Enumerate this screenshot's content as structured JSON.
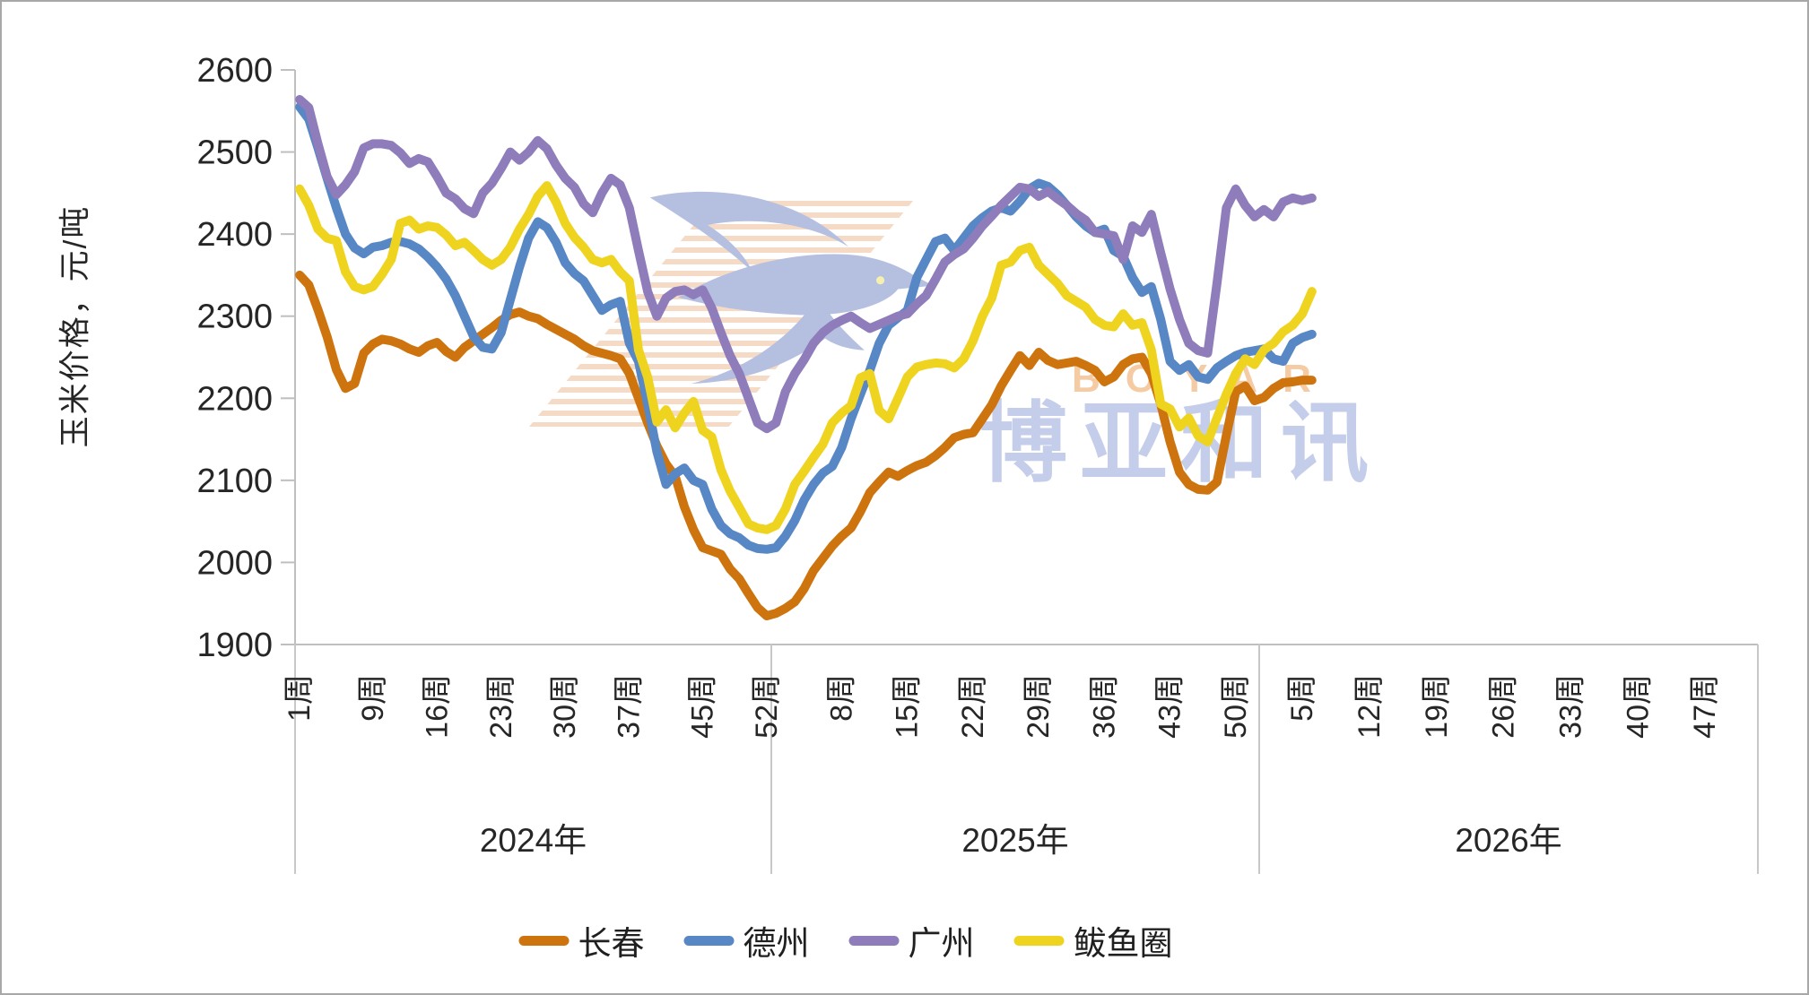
{
  "watermark": {
    "text_en": "BOYAR",
    "text_cn": "博亚和讯"
  },
  "chart_data": {
    "type": "line",
    "title": "",
    "ylabel": "玉米价格，元/吨",
    "ylim": [
      1900,
      2600
    ],
    "grid": false,
    "legend_position": "bottom",
    "y_axis": {
      "title": "玉米价格，元/吨",
      "min": 1900,
      "max": 2600,
      "ticks": [
        1900,
        2000,
        2100,
        2200,
        2300,
        2400,
        2500,
        2600
      ]
    },
    "x_axis": {
      "week_suffix": "周",
      "years": [
        {
          "label": "2024年",
          "weeks": 52,
          "tick_weeks": [
            1,
            9,
            16,
            23,
            30,
            37,
            45,
            52
          ]
        },
        {
          "label": "2025年",
          "weeks": 52,
          "tick_weeks": [
            8,
            15,
            22,
            29,
            36,
            43,
            50
          ]
        },
        {
          "label": "2026年",
          "weeks": 52,
          "tick_weeks": [
            5,
            12,
            19,
            26,
            33,
            40,
            47
          ]
        }
      ]
    },
    "series": [
      {
        "id": "changchun",
        "name": "长春",
        "color": "#CE740F",
        "values": {
          "2024": [
            2350,
            2338,
            2308,
            2275,
            2235,
            2212,
            2218,
            2255,
            2266,
            2272,
            2270,
            2266,
            2260,
            2256,
            2264,
            2268,
            2257,
            2250,
            2262,
            2270,
            2278,
            2286,
            2295,
            2302,
            2305,
            2300,
            2297,
            2290,
            2284,
            2278,
            2272,
            2264,
            2258,
            2255,
            2252,
            2248,
            2230,
            2200,
            2170,
            2142,
            2120,
            2105,
            2068,
            2040,
            2018,
            2014,
            2010,
            1992,
            1980,
            1962,
            1945,
            1935
          ],
          "2025": [
            1938,
            1944,
            1952,
            1968,
            1990,
            2005,
            2020,
            2032,
            2042,
            2062,
            2085,
            2098,
            2110,
            2105,
            2112,
            2118,
            2122,
            2130,
            2140,
            2152,
            2156,
            2158,
            2175,
            2192,
            2215,
            2234,
            2252,
            2240,
            2256,
            2246,
            2241,
            2243,
            2245,
            2240,
            2234,
            2220,
            2226,
            2241,
            2248,
            2250,
            2230,
            2193,
            2147,
            2110,
            2095,
            2089,
            2088,
            2098,
            2155,
            2208,
            2215,
            2197
          ],
          "2026": [
            2201,
            2212,
            2219,
            2220,
            2222,
            2222
          ]
        }
      },
      {
        "id": "dezhou",
        "name": "德州",
        "color": "#5787C4",
        "values": {
          "2024": [
            2555,
            2540,
            2505,
            2468,
            2432,
            2400,
            2383,
            2376,
            2384,
            2386,
            2390,
            2391,
            2388,
            2382,
            2372,
            2360,
            2345,
            2325,
            2300,
            2275,
            2262,
            2260,
            2280,
            2320,
            2360,
            2395,
            2415,
            2408,
            2390,
            2365,
            2352,
            2343,
            2325,
            2307,
            2314,
            2318,
            2267,
            2245,
            2193,
            2135,
            2095,
            2108,
            2115,
            2100,
            2095,
            2065,
            2045,
            2035,
            2030,
            2021,
            2017,
            2016
          ],
          "2025": [
            2018,
            2032,
            2051,
            2076,
            2095,
            2109,
            2117,
            2140,
            2175,
            2205,
            2234,
            2267,
            2289,
            2298,
            2307,
            2347,
            2369,
            2391,
            2395,
            2380,
            2395,
            2410,
            2420,
            2428,
            2432,
            2428,
            2440,
            2455,
            2462,
            2458,
            2448,
            2435,
            2421,
            2410,
            2402,
            2406,
            2380,
            2373,
            2347,
            2329,
            2336,
            2296,
            2245,
            2234,
            2241,
            2226,
            2223,
            2237,
            2245,
            2252,
            2256,
            2258
          ],
          "2026": [
            2260,
            2248,
            2245,
            2267,
            2274,
            2278
          ]
        }
      },
      {
        "id": "guangzhou",
        "name": "广州",
        "color": "#8E7CBB",
        "values": {
          "2024": [
            2564,
            2554,
            2510,
            2470,
            2448,
            2460,
            2476,
            2505,
            2510,
            2510,
            2508,
            2499,
            2486,
            2492,
            2488,
            2470,
            2450,
            2443,
            2431,
            2425,
            2450,
            2462,
            2480,
            2500,
            2490,
            2500,
            2514,
            2504,
            2484,
            2468,
            2457,
            2437,
            2426,
            2450,
            2468,
            2460,
            2432,
            2380,
            2330,
            2300,
            2322,
            2330,
            2332,
            2326,
            2332,
            2310,
            2280,
            2252,
            2230,
            2200,
            2170,
            2163
          ],
          "2025": [
            2170,
            2208,
            2230,
            2247,
            2267,
            2280,
            2289,
            2295,
            2300,
            2292,
            2285,
            2290,
            2295,
            2300,
            2303,
            2315,
            2325,
            2345,
            2366,
            2375,
            2382,
            2395,
            2410,
            2422,
            2435,
            2446,
            2457,
            2455,
            2446,
            2452,
            2443,
            2435,
            2425,
            2417,
            2402,
            2400,
            2398,
            2369,
            2410,
            2402,
            2424,
            2377,
            2333,
            2296,
            2267,
            2258,
            2255,
            2340,
            2432,
            2455,
            2435,
            2421
          ],
          "2026": [
            2430,
            2421,
            2439,
            2444,
            2441,
            2444
          ]
        }
      },
      {
        "id": "bayuquan",
        "name": "鲅鱼圈",
        "color": "#EFD41F",
        "values": {
          "2024": [
            2455,
            2435,
            2406,
            2395,
            2392,
            2354,
            2336,
            2332,
            2336,
            2351,
            2369,
            2413,
            2417,
            2406,
            2410,
            2408,
            2399,
            2386,
            2390,
            2380,
            2369,
            2362,
            2369,
            2384,
            2406,
            2424,
            2446,
            2459,
            2439,
            2413,
            2396,
            2384,
            2369,
            2365,
            2369,
            2354,
            2343,
            2259,
            2226,
            2171,
            2186,
            2164,
            2182,
            2196,
            2161,
            2153,
            2113,
            2087,
            2067,
            2047,
            2042,
            2040
          ],
          "2025": [
            2045,
            2065,
            2095,
            2111,
            2128,
            2144,
            2170,
            2182,
            2191,
            2225,
            2230,
            2185,
            2175,
            2200,
            2226,
            2238,
            2241,
            2243,
            2242,
            2237,
            2248,
            2270,
            2300,
            2322,
            2362,
            2366,
            2380,
            2384,
            2362,
            2351,
            2340,
            2325,
            2318,
            2311,
            2296,
            2289,
            2287,
            2303,
            2289,
            2292,
            2259,
            2193,
            2187,
            2165,
            2176,
            2154,
            2147,
            2176,
            2205,
            2230,
            2248,
            2241
          ],
          "2026": [
            2259,
            2267,
            2281,
            2289,
            2303,
            2330
          ]
        }
      }
    ]
  }
}
